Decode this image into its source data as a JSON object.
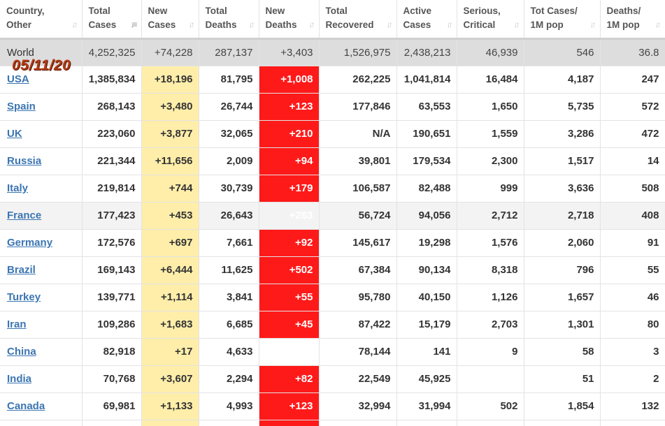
{
  "date_stamp": "05/11/20",
  "colors": {
    "new_cases_bg": "#ffeeaa",
    "new_deaths_bg": "#ff1a1a",
    "world_row_bg": "#dddddd",
    "link": "#3b75b2",
    "date_stamp": "#b33a15"
  },
  "headers": [
    {
      "label": "Country,\nOther",
      "sort_icon": "sort-icon"
    },
    {
      "label": "Total\nCases",
      "sort_icon": "sort-desc-icon"
    },
    {
      "label": "New\nCases",
      "sort_icon": "sort-icon"
    },
    {
      "label": "Total\nDeaths",
      "sort_icon": "sort-icon"
    },
    {
      "label": "New\nDeaths",
      "sort_icon": "sort-icon"
    },
    {
      "label": "Total\nRecovered",
      "sort_icon": "sort-icon"
    },
    {
      "label": "Active\nCases",
      "sort_icon": "sort-icon"
    },
    {
      "label": "Serious,\nCritical",
      "sort_icon": "sort-icon"
    },
    {
      "label": "Tot Cases/\n1M pop",
      "sort_icon": "sort-icon"
    },
    {
      "label": "Deaths/\n1M pop",
      "sort_icon": "sort-icon"
    }
  ],
  "world": [
    "World",
    "4,252,325",
    "+74,228",
    "287,137",
    "+3,403",
    "1,526,975",
    "2,438,213",
    "46,939",
    "546",
    "36.8"
  ],
  "rows": [
    [
      "USA",
      "1,385,834",
      "+18,196",
      "81,795",
      "+1,008",
      "262,225",
      "1,041,814",
      "16,484",
      "4,187",
      "247"
    ],
    [
      "Spain",
      "268,143",
      "+3,480",
      "26,744",
      "+123",
      "177,846",
      "63,553",
      "1,650",
      "5,735",
      "572"
    ],
    [
      "UK",
      "223,060",
      "+3,877",
      "32,065",
      "+210",
      "N/A",
      "190,651",
      "1,559",
      "3,286",
      "472"
    ],
    [
      "Russia",
      "221,344",
      "+11,656",
      "2,009",
      "+94",
      "39,801",
      "179,534",
      "2,300",
      "1,517",
      "14"
    ],
    [
      "Italy",
      "219,814",
      "+744",
      "30,739",
      "+179",
      "106,587",
      "82,488",
      "999",
      "3,636",
      "508"
    ],
    [
      "France",
      "177,423",
      "+453",
      "26,643",
      "+263",
      "56,724",
      "94,056",
      "2,712",
      "2,718",
      "408"
    ],
    [
      "Germany",
      "172,576",
      "+697",
      "7,661",
      "+92",
      "145,617",
      "19,298",
      "1,576",
      "2,060",
      "91"
    ],
    [
      "Brazil",
      "169,143",
      "+6,444",
      "11,625",
      "+502",
      "67,384",
      "90,134",
      "8,318",
      "796",
      "55"
    ],
    [
      "Turkey",
      "139,771",
      "+1,114",
      "3,841",
      "+55",
      "95,780",
      "40,150",
      "1,126",
      "1,657",
      "46"
    ],
    [
      "Iran",
      "109,286",
      "+1,683",
      "6,685",
      "+45",
      "87,422",
      "15,179",
      "2,703",
      "1,301",
      "80"
    ],
    [
      "China",
      "82,918",
      "+17",
      "4,633",
      "",
      "78,144",
      "141",
      "9",
      "58",
      "3"
    ],
    [
      "India",
      "70,768",
      "+3,607",
      "2,294",
      "+82",
      "22,549",
      "45,925",
      "",
      "51",
      "2"
    ],
    [
      "Canada",
      "69,981",
      "+1,133",
      "4,993",
      "+123",
      "32,994",
      "31,994",
      "502",
      "1,854",
      "132"
    ]
  ],
  "highlighted_row": "France"
}
